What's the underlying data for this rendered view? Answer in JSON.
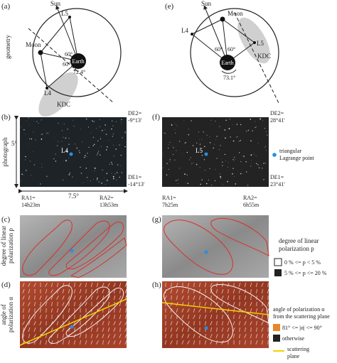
{
  "figure": {
    "panel_a": {
      "label": "(a)",
      "sun": "Sun",
      "l5": "L5",
      "moon": "Moon",
      "angle1": "60°",
      "angle2": "60°",
      "earth": "Earth",
      "angle3": "72.4°",
      "l4": "L4",
      "kdc": "KDC"
    },
    "panel_e": {
      "label": "(e)",
      "sun": "Sun",
      "moon": "Moon",
      "l4": "L4",
      "angle1": "60°",
      "angle2": "60°",
      "l5": "L5",
      "earth": "Earth",
      "angle3": "73.1°",
      "kdc": "KDC"
    },
    "panel_b": {
      "label": "(b)",
      "de2": [
        "DE2=",
        "-9°13'"
      ],
      "height": "5°",
      "point": "L4",
      "de1": [
        "DE1=",
        "-14°13'"
      ],
      "ra1": [
        "RA1=",
        "14h23m"
      ],
      "width": "7.5°",
      "ra2": [
        "RA2=",
        "13h53m"
      ]
    },
    "panel_f": {
      "label": "(f)",
      "de2": [
        "DE2=",
        "28°41'"
      ],
      "point": "L5",
      "de1": [
        "DE1=",
        "23°41'"
      ],
      "ra1": [
        "RA1=",
        "7h25m"
      ],
      "ra2": [
        "RA2=",
        "6h55m"
      ]
    },
    "panel_c": {
      "label": "(c)"
    },
    "panel_g": {
      "label": "(g)"
    },
    "panel_d": {
      "label": "(d)"
    },
    "panel_h": {
      "label": "(h)"
    },
    "row_labels": {
      "geometry": [
        "geometry"
      ],
      "photograph": [
        "photograph"
      ],
      "degree": [
        "degree of linear",
        "polarization p"
      ],
      "angle": [
        "angle of",
        "polarization α"
      ]
    },
    "legends": {
      "lagrange": [
        "triangular",
        "Lagrange point"
      ],
      "degree_title": [
        "degree of linear",
        "polarization p"
      ],
      "degree_items": [
        "0 % <= p < 5 %",
        "5 % <= p <= 20 %"
      ],
      "angle_title": [
        "angle of polarization α",
        "from the scattering plane"
      ],
      "angle_items": [
        "81° <= |α| <= 90°",
        "otherwise"
      ],
      "scattering": [
        "scattering",
        "plane"
      ]
    }
  }
}
